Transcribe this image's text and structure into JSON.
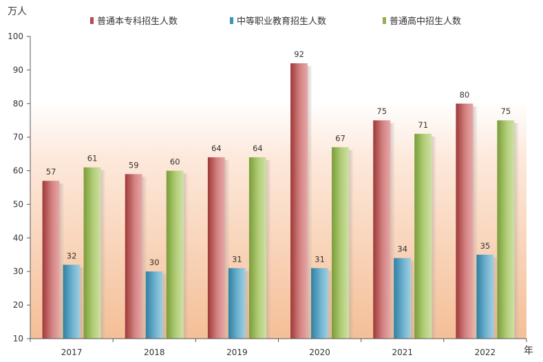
{
  "chart_data": {
    "type": "bar",
    "y_unit": "万人",
    "x_unit": "年",
    "categories": [
      "2017",
      "2018",
      "2019",
      "2020",
      "2021",
      "2022"
    ],
    "series": [
      {
        "name": "普通本专科招生人数",
        "color": "#b84b4b",
        "values": [
          57,
          59,
          64,
          92,
          75,
          80
        ]
      },
      {
        "name": "中等职业教育招生人数",
        "color": "#3f93b5",
        "values": [
          32,
          30,
          31,
          31,
          34,
          35
        ]
      },
      {
        "name": "普通高中招生人数",
        "color": "#8fb04a",
        "values": [
          61,
          60,
          64,
          67,
          71,
          75
        ]
      }
    ],
    "ylim": [
      10,
      100
    ],
    "yticks": [
      10,
      20,
      30,
      40,
      50,
      60,
      70,
      80,
      90,
      100
    ],
    "legend_position": "top",
    "grid": false
  }
}
